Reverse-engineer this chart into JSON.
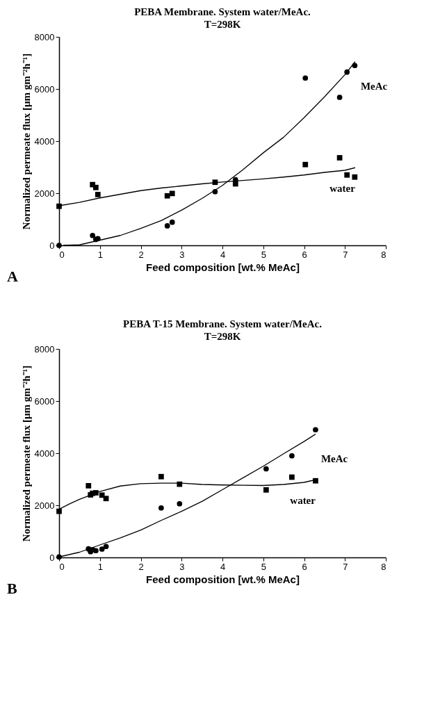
{
  "chart_data": [
    {
      "type": "scatter",
      "title": "PEBA Membrane. System water/MeAc.",
      "subtitle": "T=298K",
      "xlabel": "Feed composition [wt.% MeAc]",
      "ylabel": "Normalized permeate flux [μm gm⁻²h⁻¹]",
      "xlim": [
        0,
        8
      ],
      "ylim": [
        0,
        8000
      ],
      "xticks": [
        0,
        1,
        2,
        3,
        4,
        5,
        6,
        7,
        8
      ],
      "yticks": [
        0,
        2000,
        4000,
        6000,
        8000
      ],
      "grid": false,
      "series": [
        {
          "type": "scatter",
          "marker": "circle",
          "color": "#000000",
          "x": [
            0,
            0.82,
            0.9,
            0.95,
            2.65,
            2.77,
            3.82,
            4.32,
            6.03,
            6.87,
            7.05,
            7.24
          ],
          "values": [
            0,
            380,
            230,
            260,
            750,
            890,
            2060,
            2520,
            6420,
            5680,
            6650,
            6900
          ]
        },
        {
          "type": "scatter",
          "marker": "square",
          "color": "#000000",
          "x": [
            0,
            0.82,
            0.9,
            0.95,
            2.65,
            2.77,
            3.82,
            4.32,
            6.03,
            6.87,
            7.05,
            7.24
          ],
          "values": [
            1500,
            2330,
            2220,
            1950,
            1900,
            1990,
            2420,
            2360,
            3100,
            3360,
            2700,
            2620
          ]
        },
        {
          "type": "line",
          "name": "MeAc",
          "marker": "none",
          "line_style": "solid",
          "color": "#000000",
          "x": [
            0.1,
            0.5,
            1,
            1.5,
            2,
            2.5,
            3,
            3.5,
            4,
            4.5,
            5,
            5.5,
            6,
            6.5,
            7,
            7.25
          ],
          "values": [
            0,
            20,
            200,
            380,
            650,
            950,
            1350,
            1800,
            2300,
            2900,
            3550,
            4150,
            4900,
            5700,
            6550,
            7050
          ]
        },
        {
          "type": "line",
          "name": "water",
          "marker": "none",
          "line_style": "solid",
          "color": "#000000",
          "x": [
            0,
            0.5,
            1,
            1.5,
            2,
            2.5,
            3,
            3.5,
            4,
            4.5,
            5,
            5.5,
            6,
            6.5,
            7,
            7.25
          ],
          "values": [
            1520,
            1650,
            1820,
            1960,
            2100,
            2200,
            2280,
            2360,
            2430,
            2490,
            2550,
            2620,
            2700,
            2800,
            2880,
            2980
          ]
        }
      ],
      "annotations": [
        "A"
      ]
    },
    {
      "type": "scatter",
      "title": "PEBA T-15 Membrane. System water/MeAc.",
      "subtitle": "T=298K",
      "xlabel": "Feed composition [wt.% MeAc]",
      "ylabel": "Normalized permeate flux [μm gm⁻²h⁻¹]",
      "xlim": [
        0,
        8
      ],
      "ylim": [
        0,
        8000
      ],
      "xticks": [
        0,
        1,
        2,
        3,
        4,
        5,
        6,
        7,
        8
      ],
      "yticks": [
        0,
        2000,
        4000,
        6000,
        8000
      ],
      "grid": false,
      "series": [
        {
          "type": "scatter",
          "marker": "circle",
          "color": "#000000",
          "x": [
            0,
            0.72,
            0.77,
            0.82,
            0.9,
            1.05,
            1.15,
            2.5,
            2.95,
            5.07,
            5.7,
            6.28
          ],
          "values": [
            20,
            330,
            220,
            300,
            260,
            320,
            420,
            1900,
            2060,
            3400,
            3900,
            4900
          ]
        },
        {
          "type": "scatter",
          "marker": "square",
          "color": "#000000",
          "x": [
            0,
            0.72,
            0.77,
            0.82,
            0.9,
            1.05,
            1.15,
            2.5,
            2.95,
            5.07,
            5.7,
            6.28
          ],
          "values": [
            1770,
            2750,
            2400,
            2460,
            2480,
            2390,
            2260,
            3100,
            2810,
            2590,
            3080,
            2940
          ]
        },
        {
          "type": "line",
          "name": "MeAc",
          "marker": "none",
          "line_style": "solid",
          "color": "#000000",
          "x": [
            0,
            0.5,
            1,
            1.5,
            2,
            2.5,
            3,
            3.5,
            4,
            4.5,
            5,
            5.5,
            6,
            6.28
          ],
          "values": [
            20,
            200,
            480,
            750,
            1050,
            1420,
            1770,
            2150,
            2600,
            3050,
            3500,
            3980,
            4450,
            4730
          ]
        },
        {
          "type": "line",
          "name": "water",
          "marker": "none",
          "line_style": "solid",
          "color": "#000000",
          "x": [
            0,
            0.25,
            0.5,
            1,
            1.5,
            2,
            2.5,
            3,
            3.5,
            4,
            4.5,
            5,
            5.5,
            6,
            6.28
          ],
          "values": [
            1850,
            2050,
            2230,
            2530,
            2740,
            2830,
            2850,
            2850,
            2800,
            2780,
            2770,
            2760,
            2800,
            2880,
            2980
          ]
        }
      ],
      "annotations": [
        "B"
      ]
    }
  ]
}
